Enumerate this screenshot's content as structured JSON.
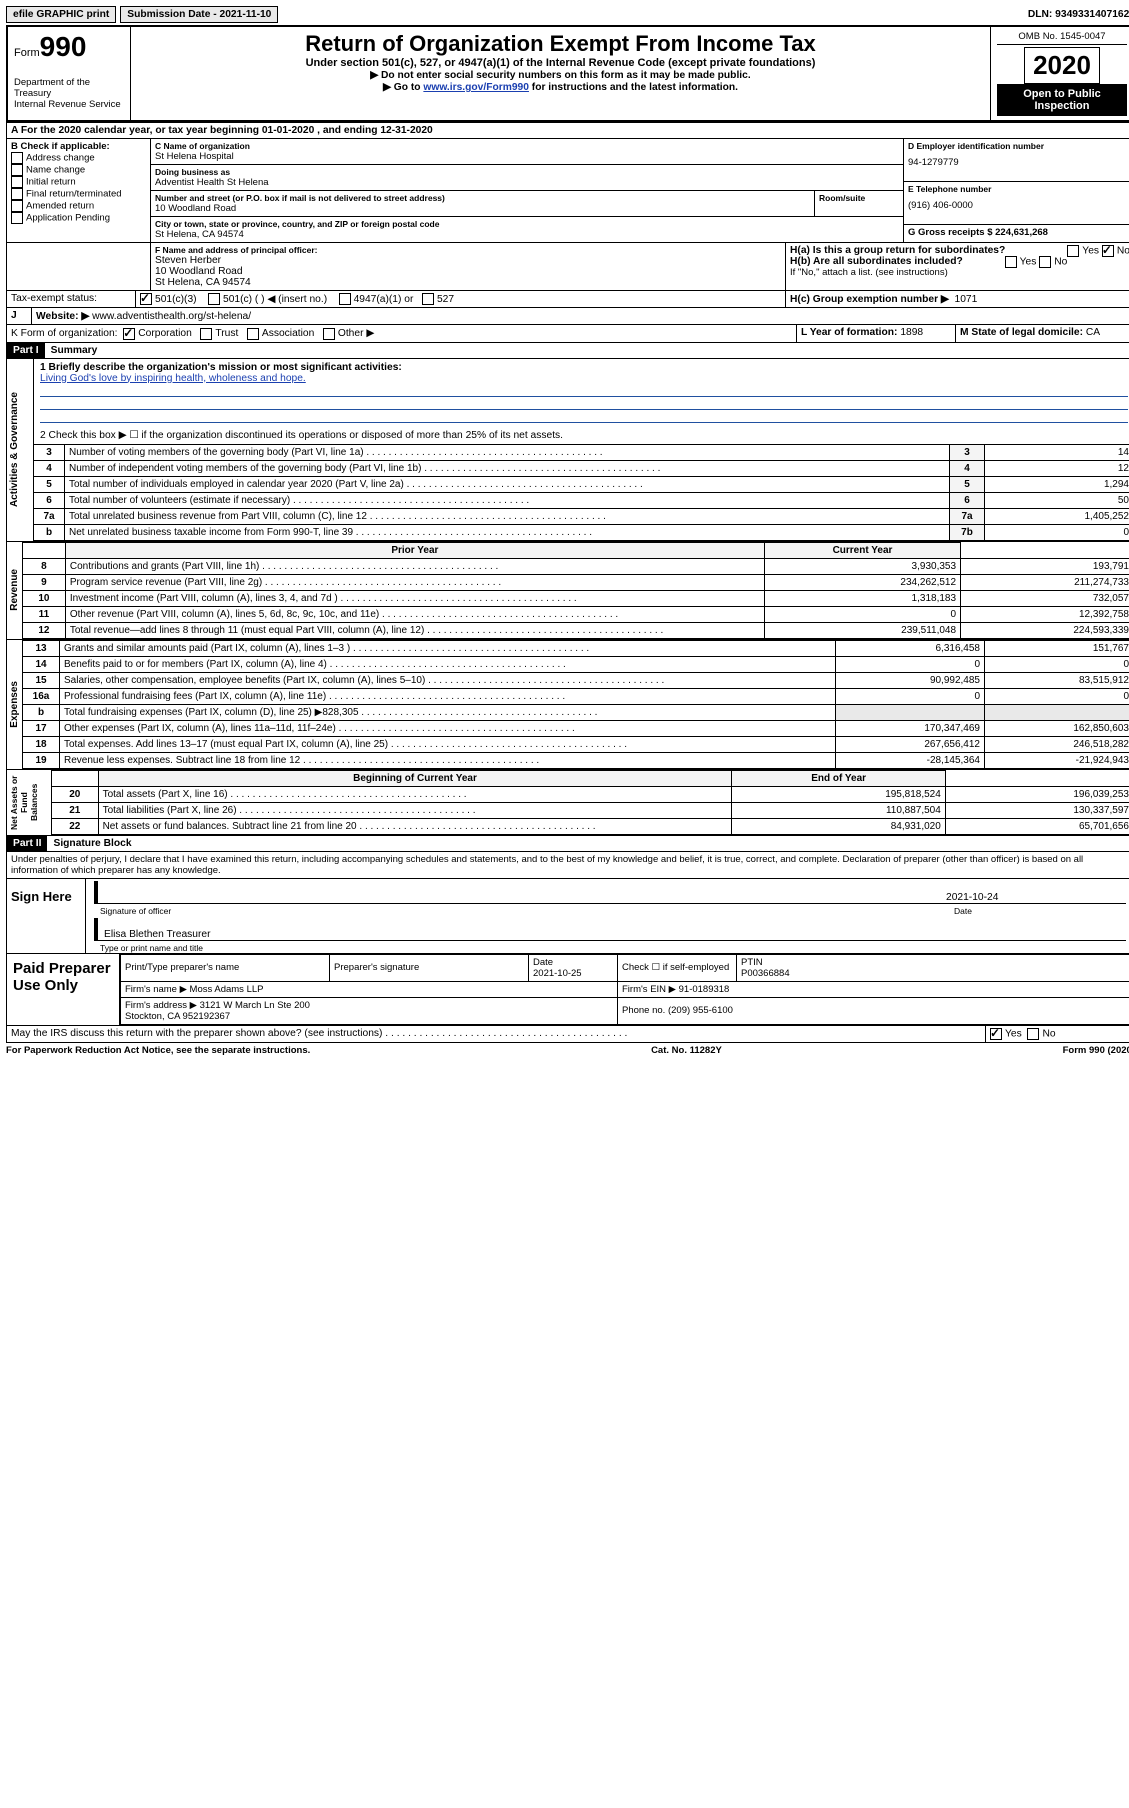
{
  "colors": {
    "black": "#000000",
    "white": "#ffffff",
    "link": "#1a3fb0",
    "gray": "#e9e9e9",
    "lightgray": "#f4f4f4",
    "ruleblue": "#2050a0"
  },
  "top": {
    "efile": "efile GRAPHIC print",
    "submission": "Submission Date - 2021-11-10",
    "dln": "DLN: 93493314071621"
  },
  "header": {
    "form_word": "Form",
    "form_no": "990",
    "dept": "Department of the Treasury\nInternal Revenue Service",
    "title": "Return of Organization Exempt From Income Tax",
    "subtitle": "Under section 501(c), 527, or 4947(a)(1) of the Internal Revenue Code (except private foundations)",
    "line1": "Do not enter social security numbers on this form as it may be made public.",
    "line2_pre": "Go to ",
    "line2_link": "www.irs.gov/Form990",
    "line2_post": " for instructions and the latest information.",
    "omb": "OMB No. 1545-0047",
    "year": "2020",
    "open": "Open to Public Inspection"
  },
  "rowA": "A For the 2020 calendar year, or tax year beginning 01-01-2020   , and ending 12-31-2020",
  "B": {
    "title": "B Check if applicable:",
    "items": [
      "Address change",
      "Name change",
      "Initial return",
      "Final return/terminated",
      "Amended return",
      "Application Pending"
    ]
  },
  "C": {
    "lbl_name": "C Name of organization",
    "name": "St Helena Hospital",
    "lbl_dba": "Doing business as",
    "dba": "Adventist Health St Helena",
    "lbl_addr": "Number and street (or P.O. box if mail is not delivered to street address)",
    "room_lbl": "Room/suite",
    "addr": "10 Woodland Road",
    "lbl_city": "City or town, state or province, country, and ZIP or foreign postal code",
    "city": "St Helena, CA  94574"
  },
  "D": {
    "lbl": "D Employer identification number",
    "val": "94-1279779"
  },
  "E": {
    "lbl": "E Telephone number",
    "val": "(916) 406-0000"
  },
  "G": {
    "lbl": "G Gross receipts $",
    "val": "224,631,268"
  },
  "F": {
    "lbl": "F  Name and address of principal officer:",
    "val": "Steven Herber\n10 Woodland Road\nSt Helena, CA  94574"
  },
  "H": {
    "a": "H(a)  Is this a group return for subordinates?",
    "a_yes": "Yes",
    "a_no": "No",
    "b": "H(b)  Are all subordinates included?",
    "b_yes": "Yes",
    "b_no": "No",
    "b_note": "If \"No,\" attach a list. (see instructions)",
    "c": "H(c)  Group exemption number ▶",
    "c_val": "1071"
  },
  "I": {
    "lbl": "Tax-exempt status:",
    "opts": [
      "501(c)(3)",
      "501(c) (  ) ◀ (insert no.)",
      "4947(a)(1) or",
      "527"
    ]
  },
  "J": {
    "lbl": "J",
    "txt": "Website: ▶",
    "val": "www.adventisthealth.org/st-helena/"
  },
  "K": {
    "lbl": "K Form of organization:",
    "opts": [
      "Corporation",
      "Trust",
      "Association",
      "Other ▶"
    ]
  },
  "L": {
    "lbl": "L Year of formation:",
    "val": "1898"
  },
  "M": {
    "lbl": "M State of legal domicile:",
    "val": "CA"
  },
  "part1": {
    "hdr": "Part I",
    "title": "Summary",
    "vert": "Activities & Governance",
    "q1": "1   Briefly describe the organization's mission or most significant activities:",
    "q1_val": "Living God's love by inspiring health, wholeness and hope.",
    "q2": "2   Check this box ▶ ☐  if the organization discontinued its operations or disposed of more than 25% of its net assets.",
    "lines": [
      {
        "n": "3",
        "d": "Number of voting members of the governing body (Part VI, line 1a)",
        "b": "3",
        "v": "14"
      },
      {
        "n": "4",
        "d": "Number of independent voting members of the governing body (Part VI, line 1b)",
        "b": "4",
        "v": "12"
      },
      {
        "n": "5",
        "d": "Total number of individuals employed in calendar year 2020 (Part V, line 2a)",
        "b": "5",
        "v": "1,294"
      },
      {
        "n": "6",
        "d": "Total number of volunteers (estimate if necessary)",
        "b": "6",
        "v": "50"
      },
      {
        "n": "7a",
        "d": "Total unrelated business revenue from Part VIII, column (C), line 12",
        "b": "7a",
        "v": "1,405,252"
      },
      {
        "n": "b",
        "d": "Net unrelated business taxable income from Form 990-T, line 39",
        "b": "7b",
        "v": "0"
      }
    ]
  },
  "revenue": {
    "vert": "Revenue",
    "hdr_prior": "Prior Year",
    "hdr_curr": "Current Year",
    "rows": [
      {
        "n": "8",
        "d": "Contributions and grants (Part VIII, line 1h)",
        "p": "3,930,353",
        "c": "193,791"
      },
      {
        "n": "9",
        "d": "Program service revenue (Part VIII, line 2g)",
        "p": "234,262,512",
        "c": "211,274,733"
      },
      {
        "n": "10",
        "d": "Investment income (Part VIII, column (A), lines 3, 4, and 7d )",
        "p": "1,318,183",
        "c": "732,057"
      },
      {
        "n": "11",
        "d": "Other revenue (Part VIII, column (A), lines 5, 6d, 8c, 9c, 10c, and 11e)",
        "p": "0",
        "c": "12,392,758"
      },
      {
        "n": "12",
        "d": "Total revenue—add lines 8 through 11 (must equal Part VIII, column (A), line 12)",
        "p": "239,511,048",
        "c": "224,593,339"
      }
    ]
  },
  "expenses": {
    "vert": "Expenses",
    "rows": [
      {
        "n": "13",
        "d": "Grants and similar amounts paid (Part IX, column (A), lines 1–3 )",
        "p": "6,316,458",
        "c": "151,767"
      },
      {
        "n": "14",
        "d": "Benefits paid to or for members (Part IX, column (A), line 4)",
        "p": "0",
        "c": "0"
      },
      {
        "n": "15",
        "d": "Salaries, other compensation, employee benefits (Part IX, column (A), lines 5–10)",
        "p": "90,992,485",
        "c": "83,515,912"
      },
      {
        "n": "16a",
        "d": "Professional fundraising fees (Part IX, column (A), line 11e)",
        "p": "0",
        "c": "0"
      },
      {
        "n": "b",
        "d": "Total fundraising expenses (Part IX, column (D), line 25) ▶828,305",
        "p": "",
        "c": ""
      },
      {
        "n": "17",
        "d": "Other expenses (Part IX, column (A), lines 11a–11d, 11f–24e)",
        "p": "170,347,469",
        "c": "162,850,603"
      },
      {
        "n": "18",
        "d": "Total expenses. Add lines 13–17 (must equal Part IX, column (A), line 25)",
        "p": "267,656,412",
        "c": "246,518,282"
      },
      {
        "n": "19",
        "d": "Revenue less expenses. Subtract line 18 from line 12",
        "p": "-28,145,364",
        "c": "-21,924,943"
      }
    ]
  },
  "netassets": {
    "vert": "Net Assets or Fund Balances",
    "hdr_beg": "Beginning of Current Year",
    "hdr_end": "End of Year",
    "rows": [
      {
        "n": "20",
        "d": "Total assets (Part X, line 16)",
        "p": "195,818,524",
        "c": "196,039,253"
      },
      {
        "n": "21",
        "d": "Total liabilities (Part X, line 26)",
        "p": "110,887,504",
        "c": "130,337,597"
      },
      {
        "n": "22",
        "d": "Net assets or fund balances. Subtract line 21 from line 20",
        "p": "84,931,020",
        "c": "65,701,656"
      }
    ]
  },
  "part2": {
    "hdr": "Part II",
    "title": "Signature Block",
    "decl": "Under penalties of perjury, I declare that I have examined this return, including accompanying schedules and statements, and to the best of my knowledge and belief, it is true, correct, and complete. Declaration of preparer (other than officer) is based on all information of which preparer has any knowledge."
  },
  "sign": {
    "left": "Sign Here",
    "sig_lbl": "Signature of officer",
    "date_lbl": "Date",
    "date": "2021-10-24",
    "name": "Elisa Blethen  Treasurer",
    "name_lbl": "Type or print name and title"
  },
  "prep": {
    "left": "Paid Preparer Use Only",
    "h1": "Print/Type preparer's name",
    "h2": "Preparer's signature",
    "h3_lbl": "Date",
    "h3_val": "2021-10-25",
    "h4": "Check ☐ if self-employed",
    "h5_lbl": "PTIN",
    "h5_val": "P00366884",
    "firm_lbl": "Firm's name   ▶",
    "firm": "Moss Adams LLP",
    "ein_lbl": "Firm's EIN ▶",
    "ein": "91-0189318",
    "addr_lbl": "Firm's address ▶",
    "addr": "3121 W March Ln Ste 200\nStockton, CA  952192367",
    "phone_lbl": "Phone no.",
    "phone": "(209) 955-6100"
  },
  "discuss": {
    "txt": "May the IRS discuss this return with the preparer shown above? (see instructions)",
    "yes": "Yes",
    "no": "No"
  },
  "footer": {
    "l": "For Paperwork Reduction Act Notice, see the separate instructions.",
    "m": "Cat. No. 11282Y",
    "r": "Form 990 (2020)"
  }
}
